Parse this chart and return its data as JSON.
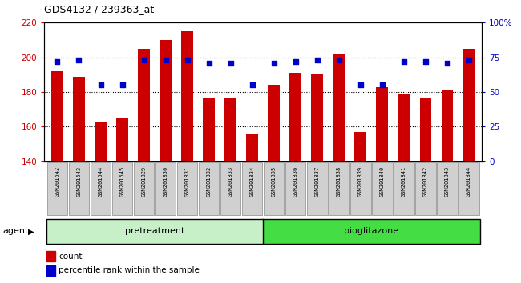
{
  "title": "GDS4132 / 239363_at",
  "samples": [
    "GSM201542",
    "GSM201543",
    "GSM201544",
    "GSM201545",
    "GSM201829",
    "GSM201830",
    "GSM201831",
    "GSM201832",
    "GSM201833",
    "GSM201834",
    "GSM201835",
    "GSM201836",
    "GSM201837",
    "GSM201838",
    "GSM201839",
    "GSM201840",
    "GSM201841",
    "GSM201842",
    "GSM201843",
    "GSM201844"
  ],
  "counts": [
    192,
    189,
    163,
    165,
    205,
    210,
    215,
    177,
    177,
    156,
    184,
    191,
    190,
    202,
    157,
    183,
    179,
    177,
    181,
    205
  ],
  "percentiles": [
    72,
    73,
    55,
    55,
    73,
    73,
    73,
    71,
    71,
    55,
    71,
    72,
    73,
    73,
    55,
    55,
    72,
    72,
    71,
    73
  ],
  "bar_color": "#cc0000",
  "dot_color": "#0000cc",
  "ylim_left": [
    140,
    220
  ],
  "ylim_right": [
    0,
    100
  ],
  "yticks_left": [
    140,
    160,
    180,
    200,
    220
  ],
  "yticks_right": [
    0,
    25,
    50,
    75,
    100
  ],
  "grid_values": [
    160,
    180,
    200
  ],
  "pretreatment_count": 10,
  "pretreatment_label": "pretreatment",
  "pioglitazone_label": "pioglitazone",
  "agent_label": "agent",
  "legend_count_label": "count",
  "legend_pct_label": "percentile rank within the sample",
  "green_light": "#c8f0c8",
  "green_dark": "#44dd44",
  "bar_width": 0.55
}
